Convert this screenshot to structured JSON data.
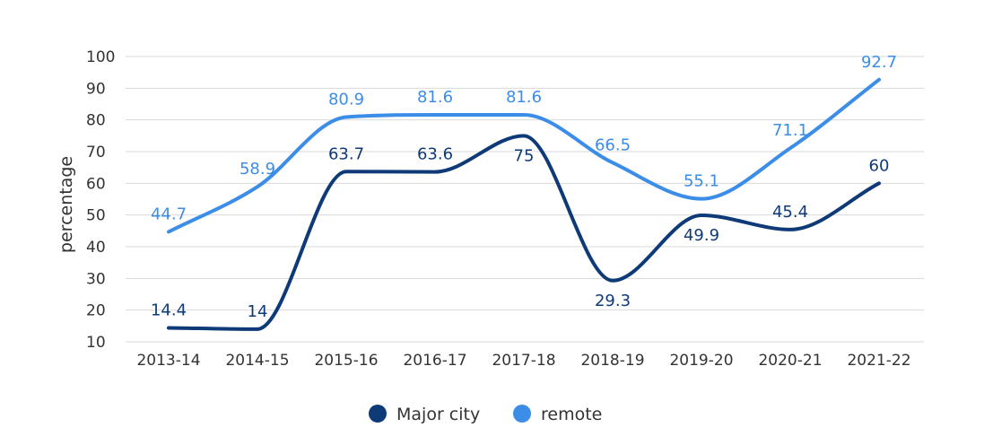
{
  "chart_data": {
    "type": "line",
    "ylabel": "percentage",
    "xlabel": "",
    "ylim": [
      10,
      100
    ],
    "yticks": [
      10,
      20,
      30,
      40,
      50,
      60,
      70,
      80,
      90,
      100
    ],
    "categories": [
      "2013-14",
      "2014-15",
      "2015-16",
      "2016-17",
      "2017-18",
      "2018-19",
      "2019-20",
      "2020-21",
      "2021-22"
    ],
    "grid": true,
    "legend_position": "bottom-center",
    "series": [
      {
        "name": "Major city",
        "color": "#0f3a78",
        "values": [
          14.4,
          14,
          63.7,
          63.6,
          75,
          29.3,
          49.9,
          45.4,
          60
        ],
        "label_placement": [
          "above",
          "above",
          "above",
          "above",
          "below",
          "below",
          "below",
          "above",
          "above"
        ]
      },
      {
        "name": "remote",
        "color": "#3b8de8",
        "values": [
          44.7,
          58.9,
          80.9,
          81.6,
          81.6,
          66.5,
          55.1,
          71.1,
          92.7
        ],
        "label_placement": [
          "above",
          "above",
          "above",
          "above",
          "above",
          "above",
          "above",
          "above",
          "above"
        ]
      }
    ]
  },
  "colors": {
    "axis_text": "#333333",
    "grid": "#d9d9d9"
  }
}
